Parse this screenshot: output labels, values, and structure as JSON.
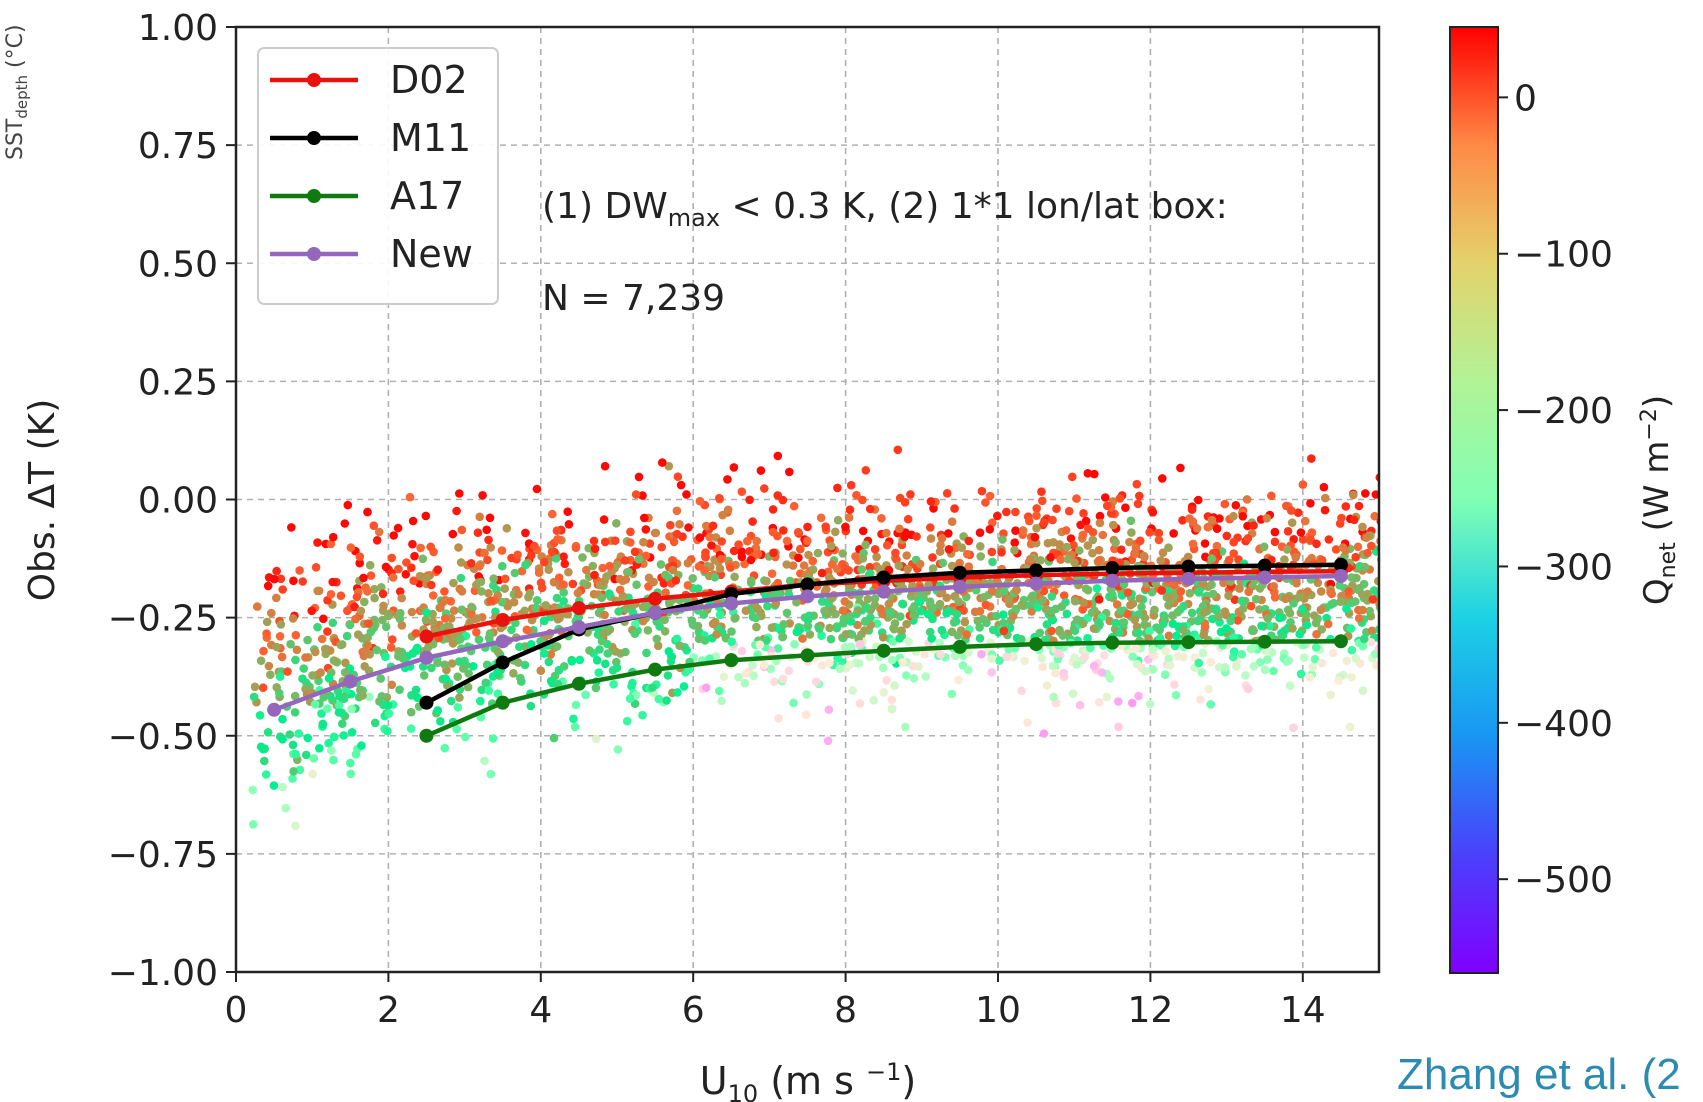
{
  "chart_data": {
    "type": "scatter",
    "xlabel_main": "U",
    "xlabel_sub": "10",
    "xlabel_rest": " (m s ",
    "xlabel_sup": "−1",
    "xlabel_end": ")",
    "ylabel": "Obs. ΔT (K)",
    "side_fragment": "SST",
    "side_fragment_sub": "depth",
    "side_fragment_rest": " (°C)",
    "xlim": [
      0,
      15
    ],
    "ylim": [
      -1.0,
      1.0
    ],
    "x_ticks": [
      0,
      2,
      4,
      6,
      8,
      10,
      12,
      14
    ],
    "x_tick_labels": [
      "0",
      "2",
      "4",
      "6",
      "8",
      "10",
      "12",
      "14"
    ],
    "y_ticks": [
      -1.0,
      -0.75,
      -0.5,
      -0.25,
      0.0,
      0.25,
      0.5,
      0.75,
      1.0
    ],
    "y_tick_labels": [
      "−1.00",
      "−0.75",
      "−0.50",
      "−0.25",
      "0.00",
      "0.25",
      "0.50",
      "0.75",
      "1.00"
    ],
    "grid": true,
    "legend_position": "top-left",
    "annotation_line1_pre": "(1) DW",
    "annotation_line1_sub": "max",
    "annotation_line1_post": " < 0.3 K, (2) 1*1 lon/lat box:",
    "annotation_line2": "N = 7,239",
    "series": [
      {
        "name": "D02",
        "color": "#e8120f",
        "x": [
          2.5,
          3.5,
          4.5,
          5.5,
          6.5,
          7.5,
          8.5,
          9.5,
          10.5,
          11.5,
          12.5,
          13.5,
          14.5
        ],
        "y": [
          -0.29,
          -0.255,
          -0.23,
          -0.21,
          -0.195,
          -0.18,
          -0.172,
          -0.165,
          -0.16,
          -0.157,
          -0.155,
          -0.153,
          -0.152
        ]
      },
      {
        "name": "M11",
        "color": "#000000",
        "x": [
          2.5,
          3.5,
          4.5,
          5.5,
          6.5,
          7.5,
          8.5,
          9.5,
          10.5,
          11.5,
          12.5,
          13.5,
          14.5
        ],
        "y": [
          -0.43,
          -0.345,
          -0.275,
          -0.24,
          -0.2,
          -0.18,
          -0.165,
          -0.155,
          -0.15,
          -0.145,
          -0.142,
          -0.14,
          -0.138
        ]
      },
      {
        "name": "A17",
        "color": "#0f7a0f",
        "x": [
          2.5,
          3.5,
          4.5,
          5.5,
          6.5,
          7.5,
          8.5,
          9.5,
          10.5,
          11.5,
          12.5,
          13.5,
          14.5
        ],
        "y": [
          -0.5,
          -0.43,
          -0.39,
          -0.36,
          -0.34,
          -0.33,
          -0.32,
          -0.312,
          -0.306,
          -0.303,
          -0.302,
          -0.301,
          -0.3
        ]
      },
      {
        "name": "New",
        "color": "#9467bd",
        "x": [
          0.5,
          1.5,
          2.5,
          3.5,
          4.5,
          5.5,
          6.5,
          7.5,
          8.5,
          9.5,
          10.5,
          11.5,
          12.5,
          13.5,
          14.5
        ],
        "y": [
          -0.445,
          -0.385,
          -0.335,
          -0.3,
          -0.27,
          -0.24,
          -0.22,
          -0.205,
          -0.195,
          -0.185,
          -0.178,
          -0.172,
          -0.168,
          -0.165,
          -0.162
        ]
      }
    ],
    "colorbar": {
      "label_main": "Q",
      "label_sub": "net",
      "label_rest": " (W m",
      "label_sup": "−2",
      "label_end": ")",
      "min": -560,
      "max": 45,
      "ticks": [
        0,
        -100,
        -200,
        -300,
        -400,
        -500
      ],
      "tick_labels": [
        "0",
        "−100",
        "−200",
        "−300",
        "−400",
        "−500"
      ],
      "colormap": "rainbow"
    },
    "scatter_summary": "7,239 points colored by Qnet; dense orange cloud between x 0.2–15, y −0.75–0.2"
  },
  "citation": "Zhang et al. (2"
}
